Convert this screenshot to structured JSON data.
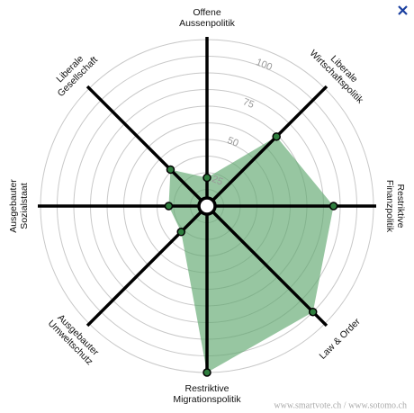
{
  "chart_data": {
    "type": "radar",
    "axes": [
      [
        "Offene",
        "Aussenpolitik"
      ],
      [
        "Liberale",
        "Wirtschaftspolitik"
      ],
      [
        "Restriktive",
        "Finanzpolitik"
      ],
      [
        "Law & Order"
      ],
      [
        "Restriktive",
        "Migrationspolitik"
      ],
      [
        "Ausgebauter",
        "Umweltschutz"
      ],
      [
        "Ausgebauter",
        "Sozialstaat"
      ],
      [
        "Liberale",
        "Gesellschaft"
      ]
    ],
    "values": [
      17,
      59,
      76,
      90,
      100,
      22,
      23,
      31
    ],
    "color": "#5fa86e",
    "rlim": [
      0,
      100
    ],
    "rticks": [
      25,
      50,
      75,
      100
    ],
    "rgrid": [
      10,
      20,
      30,
      40,
      50,
      60,
      70,
      80,
      90,
      100
    ],
    "footer": "www.smartvote.ch / www.sotomo.ch"
  }
}
